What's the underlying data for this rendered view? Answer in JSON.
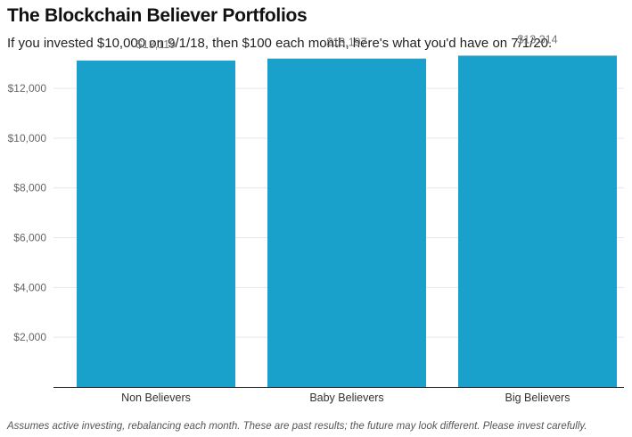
{
  "title": "The Blockchain Believer Portfolios",
  "subtitle": "If you invested $10,000 on 9/1/18, then $100 each month, here's what you'd have on 7/1/20.",
  "footnote": "Assumes active investing, rebalancing each month. These are past results; the future may look different. Please invest carefully.",
  "chart_data": {
    "type": "bar",
    "title": "The Blockchain Believer Portfolios",
    "subtitle": "If you invested $10,000 on 9/1/18, then $100 each month, here's what you'd have on 7/1/20.",
    "categories": [
      "Non Believers",
      "Baby Believers",
      "Big Believers"
    ],
    "values": [
      13119,
      13197,
      13314
    ],
    "value_labels": [
      "$13,119",
      "$13,197",
      "$13,314"
    ],
    "xlabel": "",
    "ylabel": "",
    "ylim": [
      0,
      13400
    ],
    "y_ticks": [
      2000,
      4000,
      6000,
      8000,
      10000,
      12000
    ],
    "y_tick_labels": [
      "$2,000",
      "$4,000",
      "$6,000",
      "$8,000",
      "$10,000",
      "$12,000"
    ],
    "grid": true,
    "legend": "none",
    "colors": {
      "bar": "#1aa1cb",
      "grid": "#e6e6e6",
      "axis": "#333333",
      "tick_label": "#666666",
      "value_label": "#777777",
      "category_label": "#333333"
    }
  }
}
